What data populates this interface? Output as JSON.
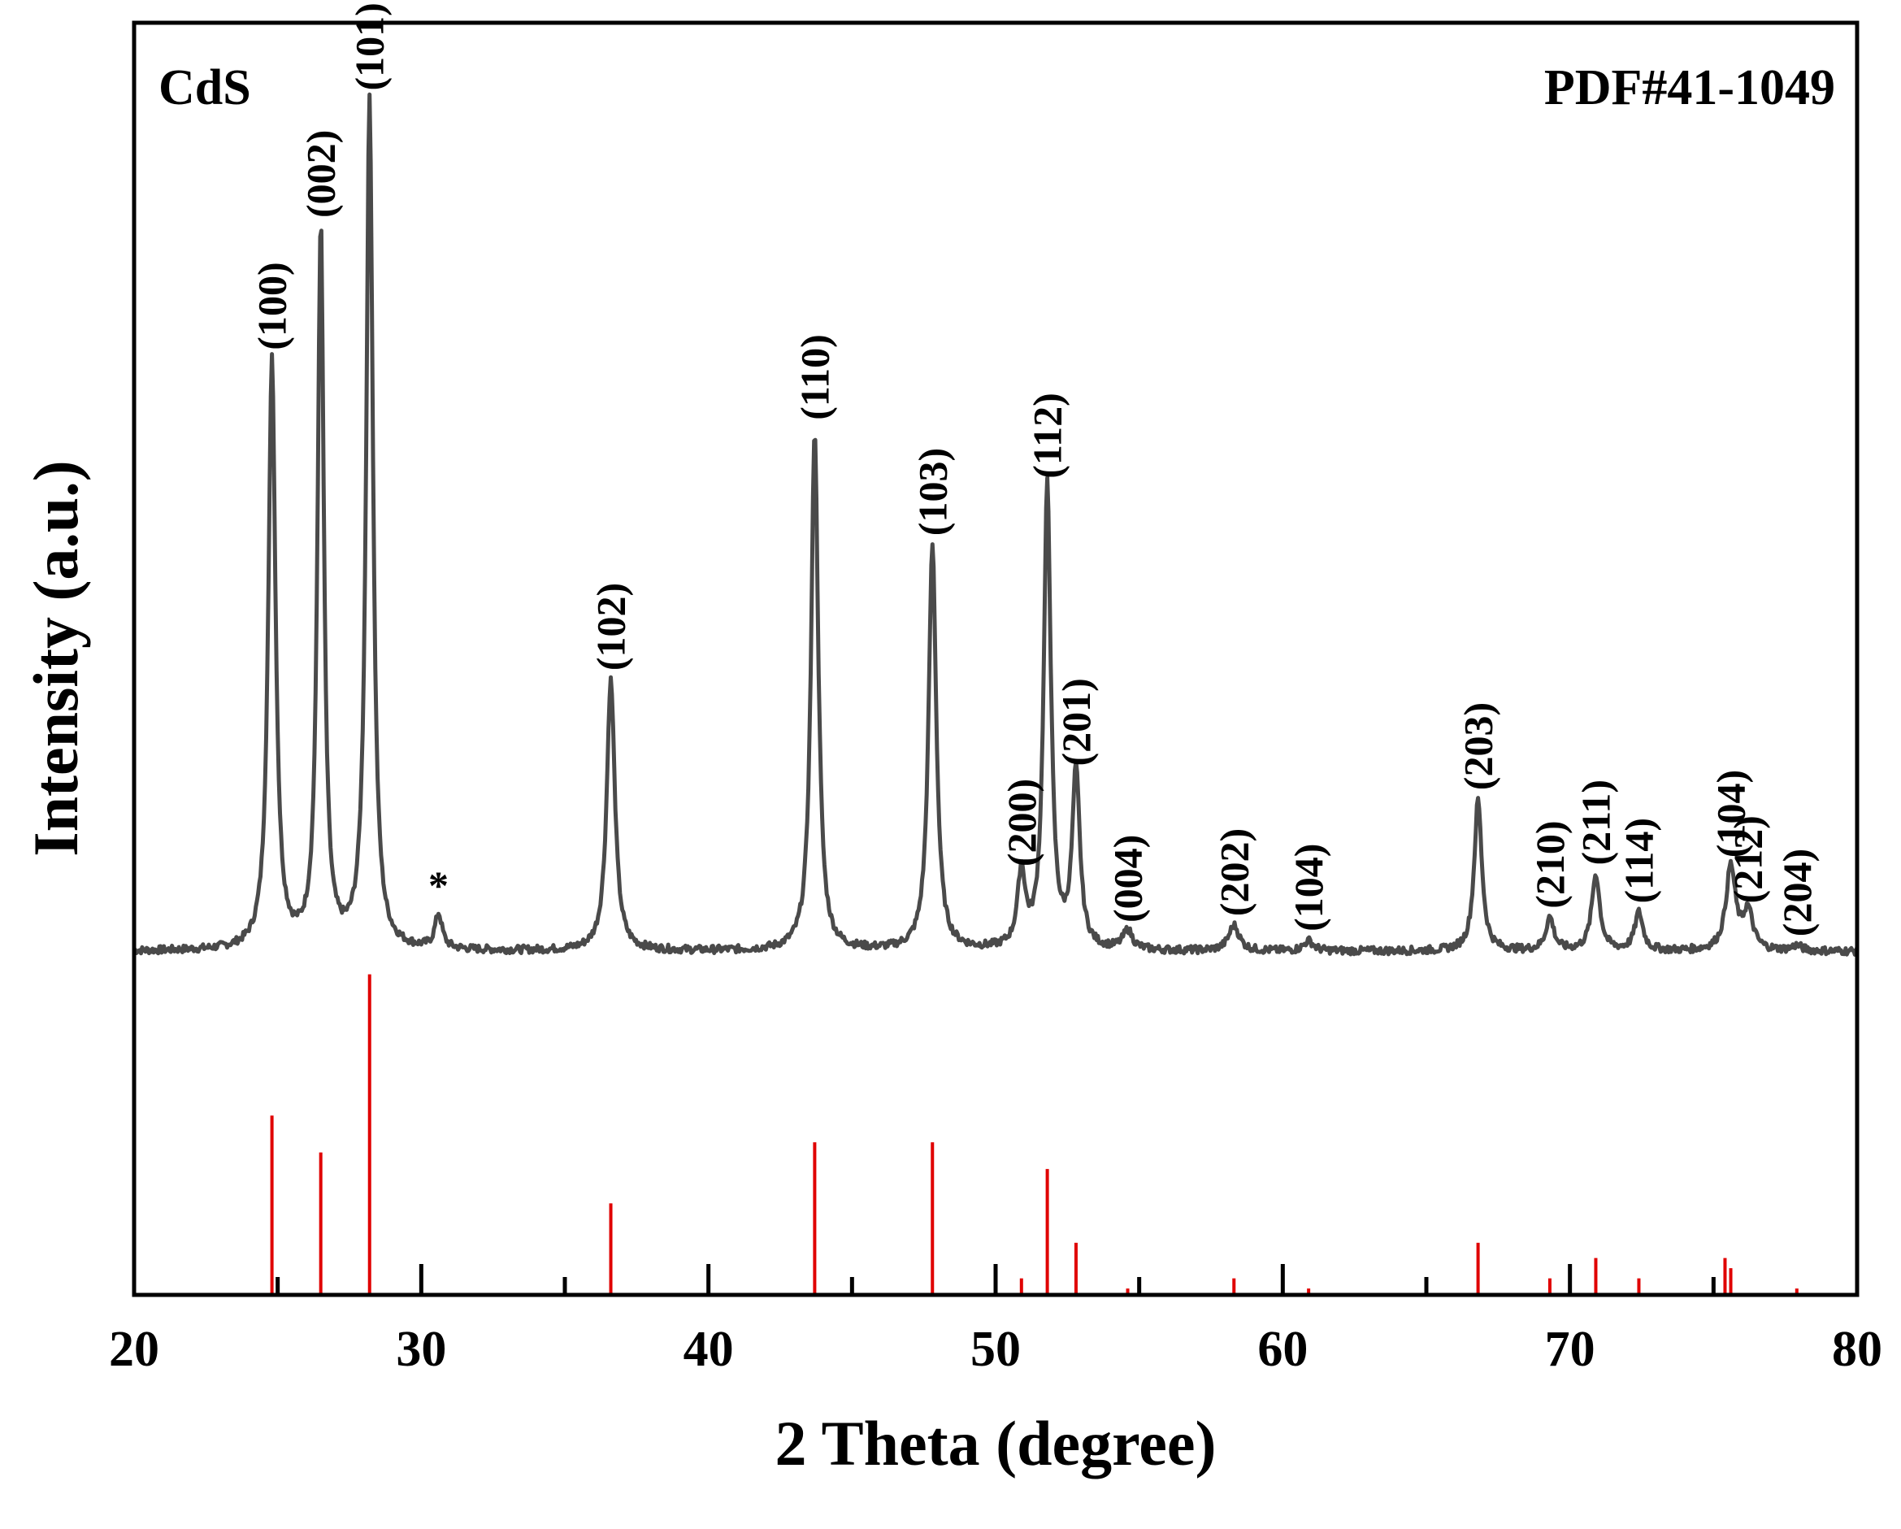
{
  "chart_data": {
    "type": "line",
    "title": "",
    "sample_label": "CdS",
    "reference_label": "PDF#41-1049",
    "xlabel": "2 Theta (degree)",
    "ylabel": "Intensity (a.u.)",
    "xlim": [
      20,
      80
    ],
    "ylim": [
      0,
      1
    ],
    "x_ticks": [
      20,
      30,
      40,
      50,
      60,
      70,
      80
    ],
    "x_tick_labels": [
      "20",
      "30",
      "40",
      "50",
      "60",
      "70",
      "80"
    ],
    "grid": false,
    "pattern_color": "#4a4a4a",
    "reference_color": "#e00000",
    "baseline": 0.27,
    "peaks": [
      {
        "x": 24.8,
        "y": 0.735,
        "label": "(100)",
        "w": 0.15
      },
      {
        "x": 26.5,
        "y": 0.839,
        "label": "(002)",
        "w": 0.13
      },
      {
        "x": 28.2,
        "y": 0.939,
        "label": "(101)",
        "w": 0.14
      },
      {
        "x": 30.6,
        "y": 0.297,
        "label": "*",
        "w": 0.15
      },
      {
        "x": 36.6,
        "y": 0.483,
        "label": "(102)",
        "w": 0.17
      },
      {
        "x": 43.7,
        "y": 0.68,
        "label": "(110)",
        "w": 0.15
      },
      {
        "x": 47.8,
        "y": 0.589,
        "label": "(103)",
        "w": 0.16
      },
      {
        "x": 50.9,
        "y": 0.329,
        "label": "(200)",
        "w": 0.16
      },
      {
        "x": 51.8,
        "y": 0.634,
        "label": "(112)",
        "w": 0.15
      },
      {
        "x": 52.8,
        "y": 0.408,
        "label": "(201)",
        "w": 0.16
      },
      {
        "x": 54.6,
        "y": 0.285,
        "label": "(004)",
        "w": 0.2
      },
      {
        "x": 58.3,
        "y": 0.29,
        "label": "(202)",
        "w": 0.22
      },
      {
        "x": 60.9,
        "y": 0.278,
        "label": "(104)",
        "w": 0.2
      },
      {
        "x": 66.8,
        "y": 0.389,
        "label": "(203)",
        "w": 0.16
      },
      {
        "x": 69.3,
        "y": 0.296,
        "label": "(210)",
        "w": 0.17
      },
      {
        "x": 70.9,
        "y": 0.33,
        "label": "(211)",
        "w": 0.17
      },
      {
        "x": 72.4,
        "y": 0.3,
        "label": "(114)",
        "w": 0.17
      },
      {
        "x": 75.6,
        "y": 0.336,
        "label": "(104)",
        "w": 0.2
      },
      {
        "x": 76.2,
        "y": 0.3,
        "label": "(212)",
        "w": 0.2
      },
      {
        "x": 77.9,
        "y": 0.274,
        "label": "(204)",
        "w": 0.2
      }
    ],
    "reference_lines": [
      {
        "x": 24.8,
        "y": 0.141
      },
      {
        "x": 26.5,
        "y": 0.112
      },
      {
        "x": 28.2,
        "y": 0.252
      },
      {
        "x": 36.6,
        "y": 0.072
      },
      {
        "x": 43.7,
        "y": 0.12
      },
      {
        "x": 47.8,
        "y": 0.12
      },
      {
        "x": 50.9,
        "y": 0.013
      },
      {
        "x": 51.8,
        "y": 0.099
      },
      {
        "x": 52.8,
        "y": 0.041
      },
      {
        "x": 54.6,
        "y": 0.005
      },
      {
        "x": 58.3,
        "y": 0.013
      },
      {
        "x": 60.9,
        "y": 0.005
      },
      {
        "x": 66.8,
        "y": 0.041
      },
      {
        "x": 69.3,
        "y": 0.013
      },
      {
        "x": 70.9,
        "y": 0.029
      },
      {
        "x": 72.4,
        "y": 0.013
      },
      {
        "x": 75.4,
        "y": 0.029
      },
      {
        "x": 75.6,
        "y": 0.021
      },
      {
        "x": 77.9,
        "y": 0.005
      }
    ]
  }
}
